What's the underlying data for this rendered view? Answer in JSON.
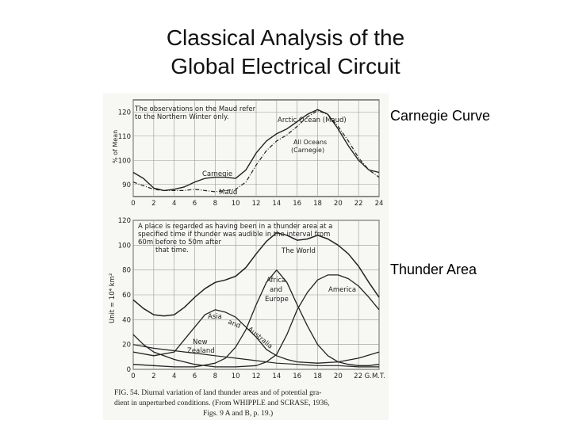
{
  "slide": {
    "title_line1": "Classical Analysis of the",
    "title_line2": "Global Electrical Circuit",
    "label_top": "Carnegie Curve",
    "label_bottom": "Thunder Area"
  },
  "colors": {
    "ink": "#222222",
    "paper": "#f7f7f4"
  },
  "chart_data": [
    {
      "type": "line",
      "ylabel": "% of Mean",
      "xlim": [
        0,
        24
      ],
      "ylim": [
        85,
        125
      ],
      "xticks": [
        0,
        2,
        4,
        6,
        8,
        10,
        12,
        14,
        16,
        18,
        20,
        22,
        24
      ],
      "yticks": [
        90,
        100,
        110,
        120
      ],
      "note": [
        "The observations on the Maud refer",
        "to the Northern Winter only."
      ],
      "series": [
        {
          "name": "Arctic Ocean (Maud)",
          "x": [
            0,
            1,
            2,
            3,
            4,
            5,
            6,
            7,
            8,
            9,
            10,
            11,
            12,
            13,
            14,
            15,
            16,
            17,
            18,
            19,
            20,
            21,
            22,
            23,
            24
          ],
          "y": [
            91,
            89.5,
            88,
            87.5,
            87.5,
            87.5,
            88,
            87.5,
            87,
            87.5,
            88,
            91,
            98,
            104,
            108,
            110.5,
            114,
            118,
            120.5,
            119,
            114,
            108,
            101,
            96,
            93
          ]
        },
        {
          "name": "All Oceans (Carnegie)",
          "x": [
            0,
            1,
            2,
            3,
            4,
            5,
            6,
            7,
            8,
            9,
            10,
            11,
            12,
            13,
            14,
            15,
            16,
            17,
            18,
            19,
            20,
            21,
            22,
            23,
            24
          ],
          "y": [
            95,
            92.5,
            88.5,
            87.5,
            88,
            89,
            91,
            92.5,
            93,
            93,
            92.5,
            96,
            103,
            108,
            111,
            113,
            116,
            119,
            121,
            119,
            113,
            106,
            100,
            96,
            95
          ]
        }
      ],
      "annotations": [
        "Arctic Ocean (Maud)",
        "All Oceans",
        "(Carnegie)",
        "Carnegie",
        "Maud"
      ]
    },
    {
      "type": "line",
      "ylabel": "Unit = 10⁴ km²",
      "xlim": [
        0,
        24
      ],
      "ylim": [
        0,
        120
      ],
      "xticks": [
        "0",
        "2",
        "4",
        "6",
        "8",
        "10",
        "12",
        "14",
        "16",
        "18",
        "20",
        "22 G.M.T."
      ],
      "yticks": [
        0,
        20,
        40,
        60,
        80,
        100,
        120
      ],
      "note": [
        "A place is regarded as having been in a thunder area at a",
        "specified time if thunder was audible in the interval from",
        "60m before to 50m after",
        "that time."
      ],
      "series": [
        {
          "name": "The World",
          "x": [
            0,
            1,
            2,
            3,
            4,
            5,
            6,
            7,
            8,
            9,
            10,
            11,
            12,
            13,
            14,
            15,
            16,
            17,
            18,
            19,
            20,
            21,
            22,
            23,
            24
          ],
          "y": [
            56,
            49,
            44,
            43,
            44,
            50,
            58,
            65,
            70,
            72,
            75,
            82,
            93,
            103,
            110,
            108,
            104,
            105,
            108,
            105,
            100,
            93,
            83,
            70,
            58
          ]
        },
        {
          "name": "Africa and Europe",
          "x": [
            0,
            2,
            4,
            6,
            8,
            9,
            10,
            11,
            12,
            13,
            14,
            15,
            16,
            17,
            18,
            19,
            20,
            21,
            22,
            23,
            24
          ],
          "y": [
            4,
            3,
            2,
            2,
            5,
            9,
            18,
            32,
            52,
            70,
            80,
            70,
            52,
            35,
            20,
            11,
            6,
            4,
            3,
            3,
            4
          ]
        },
        {
          "name": "America",
          "x": [
            0,
            1,
            2,
            4,
            6,
            8,
            10,
            12,
            13,
            14,
            15,
            16,
            17,
            18,
            19,
            20,
            21,
            22,
            23,
            24
          ],
          "y": [
            28,
            20,
            14,
            8,
            4,
            2,
            2,
            3,
            6,
            12,
            28,
            48,
            62,
            72,
            76,
            76,
            73,
            67,
            58,
            48
          ]
        },
        {
          "name": "Asia and Australia",
          "x": [
            0,
            2,
            4,
            6,
            7,
            8,
            9,
            10,
            11,
            12,
            13,
            14,
            15,
            16,
            18,
            20,
            22,
            24
          ],
          "y": [
            14,
            11,
            14,
            34,
            44,
            48,
            46,
            42,
            34,
            26,
            16,
            11,
            8,
            6,
            5,
            6,
            9,
            14
          ]
        },
        {
          "name": "New Zealand",
          "x": [
            0,
            2,
            4,
            6,
            8,
            10,
            12,
            14,
            16,
            18,
            20,
            22,
            24
          ],
          "y": [
            20,
            17,
            15,
            13,
            11,
            9,
            7,
            5,
            4,
            3,
            3,
            2,
            2
          ]
        }
      ],
      "annotations": [
        "The World",
        "Africa",
        "and",
        "Europe",
        "America",
        "Asia",
        "and",
        "Australia",
        "New",
        "Zealand"
      ]
    }
  ],
  "caption": {
    "line1": "FIG. 54. Diurnal variation of land thunder areas and of potential gra-",
    "line2": "dient in unperturbed conditions. (From WHIPPLE and SCRASE, 1936,",
    "line3": "Figs. 9 A and B, p. 19.)"
  }
}
